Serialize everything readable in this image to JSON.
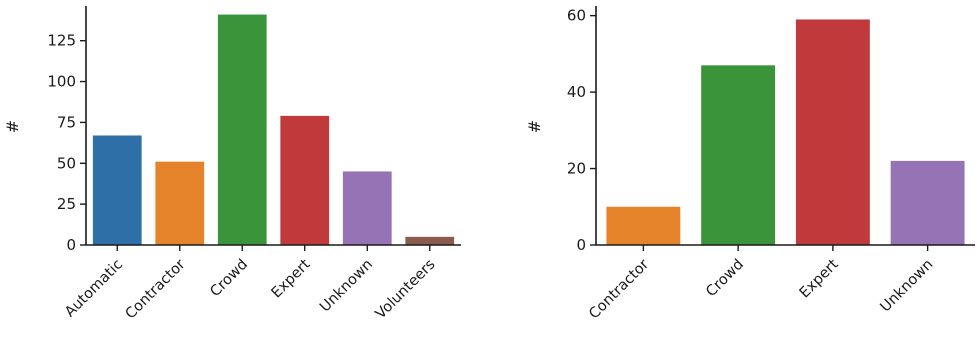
{
  "chart_data": [
    {
      "type": "bar",
      "categories": [
        "Automatic",
        "Contractor",
        "Crowd",
        "Expert",
        "Unknown",
        "Volunteers"
      ],
      "values": [
        67,
        51,
        141,
        79,
        45,
        5
      ],
      "colors": [
        "#2e6fa7",
        "#e5832a",
        "#3a9439",
        "#c0393b",
        "#9573b4",
        "#8c5b4f"
      ],
      "ylabel": "#",
      "xlabel": "",
      "ylim": [
        0,
        145
      ],
      "yticks": [
        0,
        25,
        50,
        75,
        100,
        125
      ],
      "grid": false
    },
    {
      "type": "bar",
      "categories": [
        "Contractor",
        "Crowd",
        "Expert",
        "Unknown"
      ],
      "values": [
        10,
        47,
        59,
        22
      ],
      "colors": [
        "#e5832a",
        "#3a9439",
        "#c0393b",
        "#9573b4"
      ],
      "ylabel": "#",
      "xlabel": "",
      "ylim": [
        0,
        62
      ],
      "yticks": [
        0,
        20,
        40,
        60
      ],
      "grid": false
    }
  ]
}
